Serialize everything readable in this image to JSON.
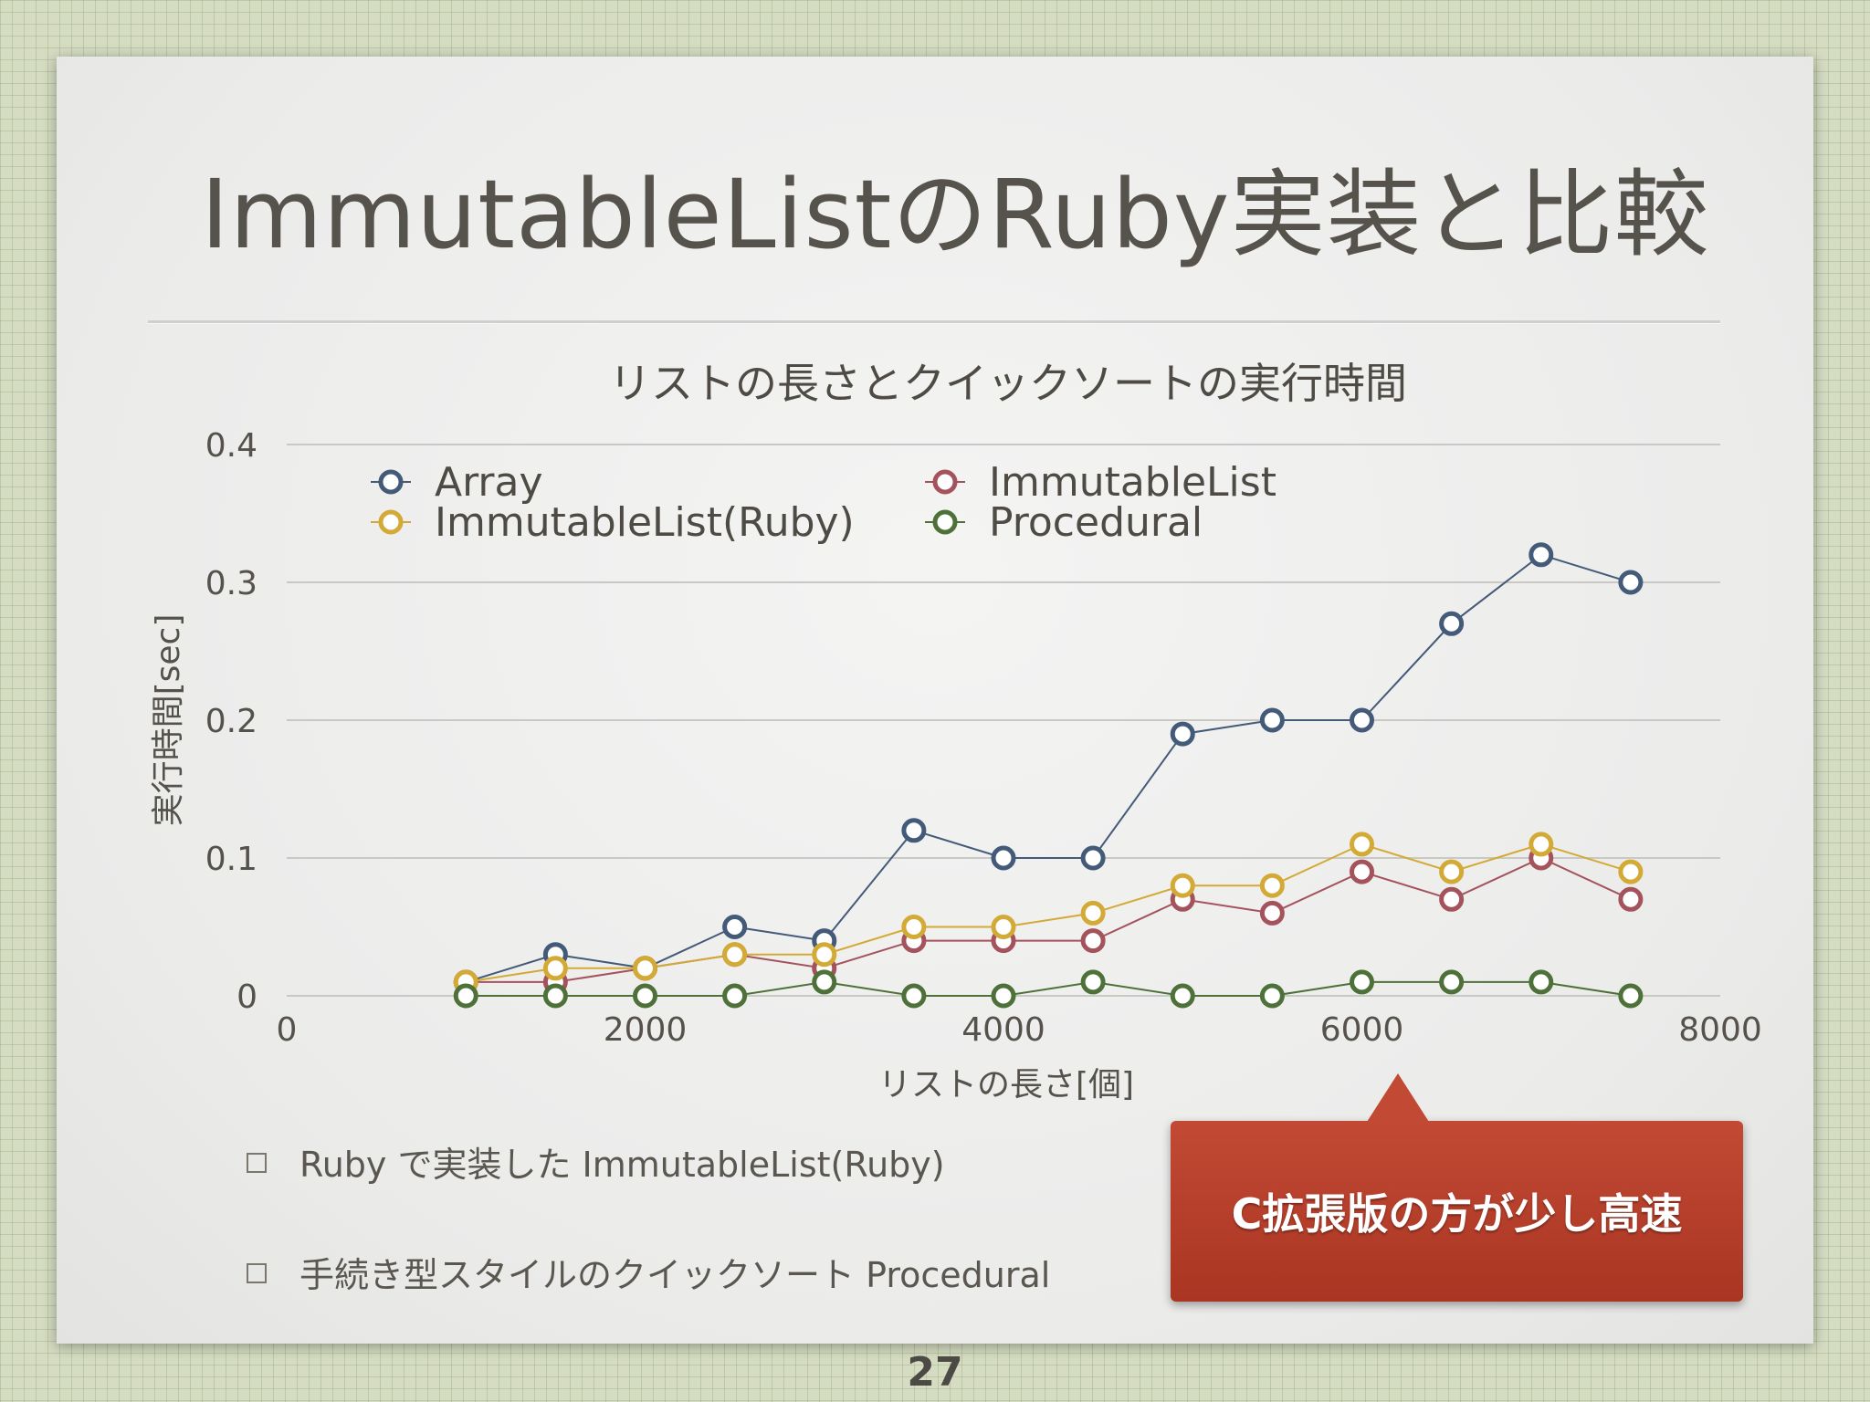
{
  "slide": {
    "title": "ImmutableListのRuby実装と比較",
    "bullets": [
      "Ruby で実装した ImmutableList(Ruby)",
      "手続き型スタイルのクイックソート Procedural"
    ],
    "callout": "C拡張版の方が少し高速",
    "page_number": "27"
  },
  "chart_data": {
    "type": "line",
    "title": "リストの長さとクイックソートの実行時間",
    "xlabel": "リストの長さ[個]",
    "ylabel": "実行時間[sec]",
    "xlim": [
      0,
      8000
    ],
    "ylim": [
      0,
      0.4
    ],
    "xticks": [
      "0",
      "2000",
      "4000",
      "6000",
      "8000"
    ],
    "yticks": [
      "0",
      "0.1",
      "0.2",
      "0.3",
      "0.4"
    ],
    "grid": true,
    "legend_position": "top",
    "x": [
      1000,
      1500,
      2000,
      2500,
      3000,
      3500,
      4000,
      4500,
      5000,
      5500,
      6000,
      6500,
      7000,
      7500
    ],
    "series": [
      {
        "name": "Array",
        "color": "#435a78",
        "values": [
          0.01,
          0.03,
          0.02,
          0.05,
          0.04,
          0.12,
          0.1,
          0.1,
          0.19,
          0.2,
          0.2,
          0.27,
          0.32,
          0.3
        ]
      },
      {
        "name": "ImmutableList",
        "color": "#a4535d",
        "values": [
          0.01,
          0.01,
          0.02,
          0.03,
          0.02,
          0.04,
          0.04,
          0.04,
          0.07,
          0.06,
          0.09,
          0.07,
          0.1,
          0.07
        ]
      },
      {
        "name": "ImmutableList(Ruby)",
        "color": "#d3aa35",
        "values": [
          0.01,
          0.02,
          0.02,
          0.03,
          0.03,
          0.05,
          0.05,
          0.06,
          0.08,
          0.08,
          0.11,
          0.09,
          0.11,
          0.09
        ]
      },
      {
        "name": "Procedural",
        "color": "#4d7138",
        "values": [
          0.0,
          0.0,
          0.0,
          0.0,
          0.01,
          0.0,
          0.0,
          0.01,
          0.0,
          0.0,
          0.01,
          0.01,
          0.01,
          0.0
        ]
      }
    ]
  }
}
